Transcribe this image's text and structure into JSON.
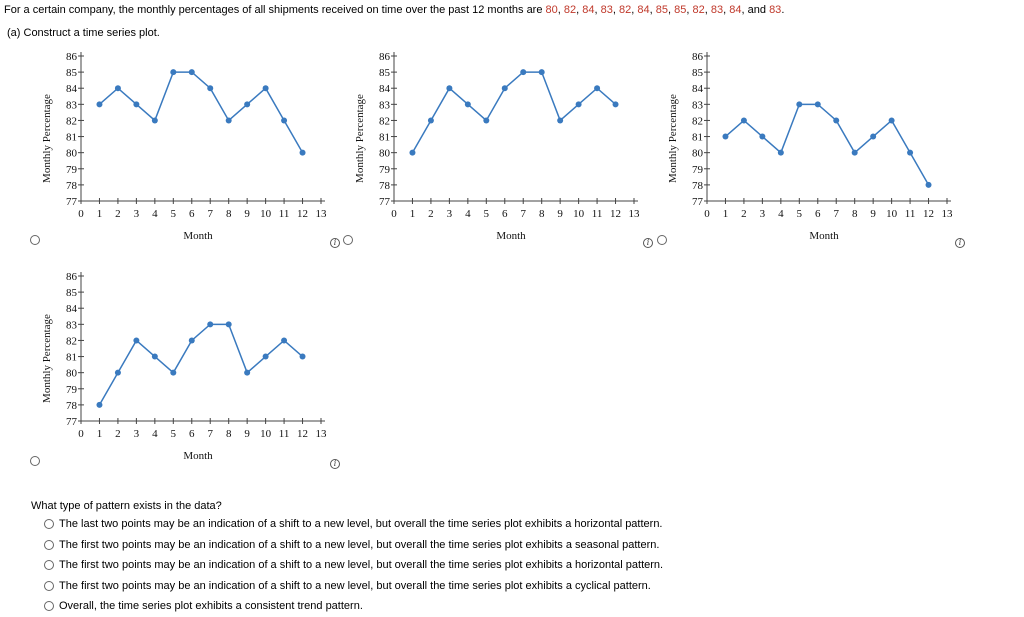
{
  "intro": {
    "prefix": "For a certain company, the monthly percentages of all shipments received on time over the past 12 months are ",
    "values": [
      "80",
      "82",
      "84",
      "83",
      "82",
      "84",
      "85",
      "85",
      "82",
      "83",
      "84"
    ],
    "last_value": "83",
    "and": ", and ",
    "end": "."
  },
  "part_a": "(a)  Construct a time series plot.",
  "chart_data": [
    {
      "type": "line",
      "x": [
        1,
        2,
        3,
        4,
        5,
        6,
        7,
        8,
        9,
        10,
        11,
        12
      ],
      "values": [
        83,
        84,
        83,
        82,
        85,
        85,
        84,
        82,
        83,
        84,
        82,
        80
      ],
      "xlabel": "Month",
      "ylabel": "Monthly Percentage",
      "xlim": [
        0,
        13
      ],
      "ylim": [
        77,
        86
      ],
      "xticks": [
        0,
        1,
        2,
        3,
        4,
        5,
        6,
        7,
        8,
        9,
        10,
        11,
        12,
        13
      ],
      "yticks": [
        77,
        78,
        79,
        80,
        81,
        82,
        83,
        84,
        85,
        86
      ],
      "color": "#3a7abf"
    },
    {
      "type": "line",
      "x": [
        1,
        2,
        3,
        4,
        5,
        6,
        7,
        8,
        9,
        10,
        11,
        12
      ],
      "values": [
        80,
        82,
        84,
        83,
        82,
        84,
        85,
        85,
        82,
        83,
        84,
        83
      ],
      "xlabel": "Month",
      "ylabel": "Monthly Percentage",
      "xlim": [
        0,
        13
      ],
      "ylim": [
        77,
        86
      ],
      "xticks": [
        0,
        1,
        2,
        3,
        4,
        5,
        6,
        7,
        8,
        9,
        10,
        11,
        12,
        13
      ],
      "yticks": [
        77,
        78,
        79,
        80,
        81,
        82,
        83,
        84,
        85,
        86
      ],
      "color": "#3a7abf"
    },
    {
      "type": "line",
      "x": [
        1,
        2,
        3,
        4,
        5,
        6,
        7,
        8,
        9,
        10,
        11,
        12
      ],
      "values": [
        81,
        82,
        81,
        80,
        83,
        83,
        82,
        80,
        81,
        82,
        80,
        78
      ],
      "xlabel": "Month",
      "ylabel": "Monthly Percentage",
      "xlim": [
        0,
        13
      ],
      "ylim": [
        77,
        86
      ],
      "xticks": [
        0,
        1,
        2,
        3,
        4,
        5,
        6,
        7,
        8,
        9,
        10,
        11,
        12,
        13
      ],
      "yticks": [
        77,
        78,
        79,
        80,
        81,
        82,
        83,
        84,
        85,
        86
      ],
      "color": "#3a7abf"
    },
    {
      "type": "line",
      "x": [
        1,
        2,
        3,
        4,
        5,
        6,
        7,
        8,
        9,
        10,
        11,
        12
      ],
      "values": [
        78,
        80,
        82,
        81,
        80,
        82,
        83,
        83,
        80,
        81,
        82,
        81
      ],
      "xlabel": "Month",
      "ylabel": "Monthly Percentage",
      "xlim": [
        0,
        13
      ],
      "ylim": [
        77,
        86
      ],
      "xticks": [
        0,
        1,
        2,
        3,
        4,
        5,
        6,
        7,
        8,
        9,
        10,
        11,
        12,
        13
      ],
      "yticks": [
        77,
        78,
        79,
        80,
        81,
        82,
        83,
        84,
        85,
        86
      ],
      "color": "#3a7abf"
    }
  ],
  "question": "What type of pattern exists in the data?",
  "options": [
    "The last two points may be an indication of a shift to a new level, but overall the time series plot exhibits a horizontal pattern.",
    "The first two points may be an indication of a shift to a new level, but overall the time series plot exhibits a seasonal pattern.",
    "The first two points may be an indication of a shift to a new level, but overall the time series plot exhibits a horizontal pattern.",
    "The first two points may be an indication of a shift to a new level, but overall the time series plot exhibits a cyclical pattern.",
    "Overall, the time series plot exhibits a consistent trend pattern."
  ],
  "info_glyph": "i"
}
